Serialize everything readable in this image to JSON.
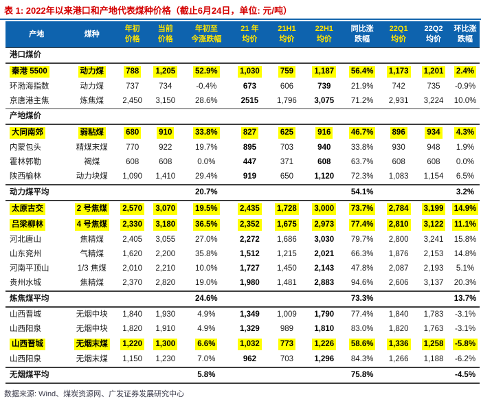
{
  "title": "表 1: 2022年以来港口和产地代表煤种价格（截止6月24日，单位: 元/吨）",
  "footer": "数据来源: Wind、煤炭资源网、广发证券发展研究中心",
  "colors": {
    "title_red": "#d40000",
    "header_bg": "#0e63ae",
    "header_text_yellow": "#ffe400",
    "header_text_white": "#ffffff",
    "row_highlight": "#ffff00",
    "rule_dark": "#3d3d3d",
    "title_rule_blue": "#1565ad"
  },
  "table": {
    "headers": [
      {
        "line1": "产地",
        "line2": "",
        "yellow": false
      },
      {
        "line1": "煤种",
        "line2": "",
        "yellow": false
      },
      {
        "line1": "年初",
        "line2": "价格",
        "yellow": true
      },
      {
        "line1": "当前",
        "line2": "价格",
        "yellow": true
      },
      {
        "line1": "年初至",
        "line2": "今涨跌幅",
        "yellow": true
      },
      {
        "line1": "21 年",
        "line2": "均价",
        "yellow": true
      },
      {
        "line1": "21H1",
        "line2": "均价",
        "yellow": true
      },
      {
        "line1": "22H1",
        "line2": "均价",
        "yellow": true
      },
      {
        "line1": "同比涨",
        "line2": "跌幅",
        "yellow": false
      },
      {
        "line1": "22Q1",
        "line2": "均价",
        "yellow": true
      },
      {
        "line1": "22Q2",
        "line2": "均价",
        "yellow": false
      },
      {
        "line1": "环比涨",
        "line2": "跌幅",
        "yellow": false
      }
    ],
    "bold_value_columns": [
      5,
      7
    ],
    "avg_bold_columns": [
      4,
      8,
      11
    ],
    "rows": [
      {
        "type": "section",
        "label": "港口煤价"
      },
      {
        "type": "data",
        "highlight": true,
        "cells": [
          "秦港 5500",
          "动力煤",
          "788",
          "1,205",
          "52.9%",
          "1,030",
          "759",
          "1,187",
          "56.4%",
          "1,173",
          "1,201",
          "2.4%"
        ]
      },
      {
        "type": "data",
        "highlight": false,
        "cells": [
          "环渤海指数",
          "动力煤",
          "737",
          "734",
          "-0.4%",
          "673",
          "606",
          "739",
          "21.9%",
          "742",
          "735",
          "-0.9%"
        ]
      },
      {
        "type": "data",
        "highlight": false,
        "cells": [
          "京唐港主焦",
          "炼焦煤",
          "2,450",
          "3,150",
          "28.6%",
          "2515",
          "1,796",
          "3,075",
          "71.2%",
          "2,931",
          "3,224",
          "10.0%"
        ]
      },
      {
        "type": "section",
        "label": "产地煤价"
      },
      {
        "type": "data",
        "highlight": true,
        "cells": [
          "大同南郊",
          "弱粘煤",
          "680",
          "910",
          "33.8%",
          "827",
          "625",
          "916",
          "46.7%",
          "896",
          "934",
          "4.3%"
        ]
      },
      {
        "type": "data",
        "highlight": false,
        "cells": [
          "内蒙包头",
          "精煤末煤",
          "770",
          "922",
          "19.7%",
          "895",
          "703",
          "940",
          "33.8%",
          "930",
          "948",
          "1.9%"
        ]
      },
      {
        "type": "data",
        "highlight": false,
        "cells": [
          "霍林郭勒",
          "褐煤",
          "608",
          "608",
          "0.0%",
          "447",
          "371",
          "608",
          "63.7%",
          "608",
          "608",
          "0.0%"
        ]
      },
      {
        "type": "data",
        "highlight": false,
        "cells": [
          "陕西榆林",
          "动力块煤",
          "1,090",
          "1,410",
          "29.4%",
          "919",
          "650",
          "1,120",
          "72.3%",
          "1,083",
          "1,154",
          "6.5%"
        ]
      },
      {
        "type": "avg",
        "cells": [
          "动力煤平均",
          "",
          "",
          "",
          "20.7%",
          "",
          "",
          "",
          "54.1%",
          "",
          "",
          "3.2%"
        ]
      },
      {
        "type": "data",
        "highlight": true,
        "cells": [
          "太原古交",
          "2 号焦煤",
          "2,570",
          "3,070",
          "19.5%",
          "2,435",
          "1,728",
          "3,000",
          "73.7%",
          "2,784",
          "3,199",
          "14.9%"
        ]
      },
      {
        "type": "data",
        "highlight": true,
        "cells": [
          "吕梁柳林",
          "4 号焦煤",
          "2,330",
          "3,180",
          "36.5%",
          "2,352",
          "1,675",
          "2,973",
          "77.4%",
          "2,810",
          "3,122",
          "11.1%"
        ]
      },
      {
        "type": "data",
        "highlight": false,
        "cells": [
          "河北唐山",
          "焦精煤",
          "2,405",
          "3,055",
          "27.0%",
          "2,272",
          "1,686",
          "3,030",
          "79.7%",
          "2,800",
          "3,241",
          "15.8%"
        ]
      },
      {
        "type": "data",
        "highlight": false,
        "cells": [
          "山东兖州",
          "气精煤",
          "1,620",
          "2,200",
          "35.8%",
          "1,512",
          "1,215",
          "2,021",
          "66.3%",
          "1,876",
          "2,153",
          "14.8%"
        ]
      },
      {
        "type": "data",
        "highlight": false,
        "cells": [
          "河南平顶山",
          "1/3 焦煤",
          "2,010",
          "2,210",
          "10.0%",
          "1,727",
          "1,450",
          "2,143",
          "47.8%",
          "2,087",
          "2,193",
          "5.1%"
        ]
      },
      {
        "type": "data",
        "highlight": false,
        "cells": [
          "贵州水城",
          "焦精煤",
          "2,370",
          "2,820",
          "19.0%",
          "1,980",
          "1,481",
          "2,883",
          "94.6%",
          "2,606",
          "3,137",
          "20.3%"
        ]
      },
      {
        "type": "avg",
        "cells": [
          "炼焦煤平均",
          "",
          "",
          "",
          "24.6%",
          "",
          "",
          "",
          "73.3%",
          "",
          "",
          "13.7%"
        ]
      },
      {
        "type": "data",
        "highlight": false,
        "cells": [
          "山西晋城",
          "无烟中块",
          "1,840",
          "1,930",
          "4.9%",
          "1,349",
          "1,009",
          "1,790",
          "77.4%",
          "1,840",
          "1,783",
          "-3.1%"
        ]
      },
      {
        "type": "data",
        "highlight": false,
        "cells": [
          "山西阳泉",
          "无烟中块",
          "1,820",
          "1,910",
          "4.9%",
          "1,329",
          "989",
          "1,810",
          "83.0%",
          "1,820",
          "1,763",
          "-3.1%"
        ]
      },
      {
        "type": "data",
        "highlight": true,
        "cells": [
          "山西晋城",
          "无烟末煤",
          "1,220",
          "1,300",
          "6.6%",
          "1,032",
          "773",
          "1,226",
          "58.6%",
          "1,336",
          "1,258",
          "-5.8%"
        ]
      },
      {
        "type": "data",
        "highlight": false,
        "cells": [
          "山西阳泉",
          "无烟末煤",
          "1,150",
          "1,230",
          "7.0%",
          "962",
          "703",
          "1,296",
          "84.3%",
          "1,266",
          "1,188",
          "-6.2%"
        ]
      },
      {
        "type": "avg",
        "cells": [
          "无烟煤平均",
          "",
          "",
          "",
          "5.8%",
          "",
          "",
          "",
          "75.8%",
          "",
          "",
          "-4.5%"
        ]
      }
    ]
  }
}
